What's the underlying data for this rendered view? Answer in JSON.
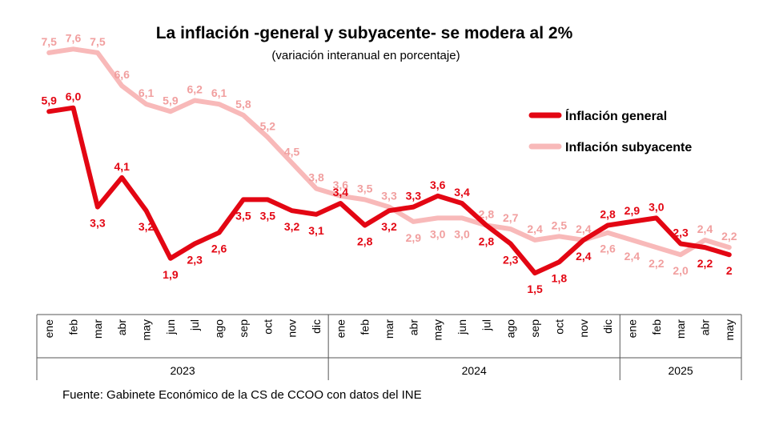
{
  "chart_data": {
    "type": "line",
    "title": "La inflación -general y subyacente- se modera al 2%",
    "subtitle": "(variación interanual en porcentaje)",
    "source": "Fuente: Gabinete Económico de la CS de CCOO con datos del INE",
    "categories": [
      "ene",
      "feb",
      "mar",
      "abr",
      "may",
      "jun",
      "jul",
      "ago",
      "sep",
      "oct",
      "nov",
      "dic",
      "ene",
      "feb",
      "mar",
      "abr",
      "may",
      "jun",
      "jul",
      "ago",
      "sep",
      "oct",
      "nov",
      "dic",
      "ene",
      "feb",
      "mar",
      "abr",
      "may"
    ],
    "years": [
      {
        "label": "2023",
        "start": 0,
        "end": 11
      },
      {
        "label": "2024",
        "start": 12,
        "end": 23
      },
      {
        "label": "2025",
        "start": 24,
        "end": 28
      }
    ],
    "ylim": [
      0,
      8.5
    ],
    "series": [
      {
        "name": "Inflación subyacente",
        "color": "#f8b9b9",
        "label_color": "#f19f9f",
        "values": [
          7.5,
          7.6,
          7.5,
          6.6,
          6.1,
          5.9,
          6.2,
          6.1,
          5.8,
          5.2,
          4.5,
          3.8,
          3.6,
          3.5,
          3.3,
          2.9,
          3.0,
          3.0,
          2.8,
          2.7,
          2.4,
          2.5,
          2.4,
          2.6,
          2.4,
          2.2,
          2.0,
          2.4,
          2.2
        ],
        "labels": [
          "7,5",
          "7,6",
          "7,5",
          "6,6",
          "6,1",
          "5,9",
          "6,2",
          "6,1",
          "5,8",
          "5,2",
          "4,5",
          "3,8",
          "3,6",
          "3,5",
          "3,3",
          "2,9",
          "3,0",
          "3,0",
          "2,8",
          "2,7",
          "2,4",
          "2,5",
          "2,4",
          "2,6",
          "2,4",
          "2,2",
          "2,0",
          "2,4",
          "2,2"
        ],
        "label_pos": [
          "above",
          "above",
          "above",
          "above",
          "above",
          "above",
          "above",
          "above",
          "above",
          "above",
          "above",
          "above",
          "above",
          "above",
          "above",
          "below",
          "below",
          "below",
          "above",
          "above",
          "above",
          "above",
          "above",
          "below",
          "below",
          "below",
          "below",
          "above",
          "above"
        ]
      },
      {
        "name": "Inflación general",
        "color": "#e30613",
        "label_color": "#e30613",
        "values": [
          5.9,
          6.0,
          3.3,
          4.1,
          3.2,
          1.9,
          2.3,
          2.6,
          3.5,
          3.5,
          3.2,
          3.1,
          3.4,
          2.8,
          3.2,
          3.3,
          3.6,
          3.4,
          2.8,
          2.3,
          1.5,
          1.8,
          2.4,
          2.8,
          2.9,
          3.0,
          2.3,
          2.2,
          2.0
        ],
        "labels": [
          "5,9",
          "6,0",
          "3,3",
          "4,1",
          "3,2",
          "1,9",
          "2,3",
          "2,6",
          "3,5",
          "3,5",
          "3,2",
          "3,1",
          "3,4",
          "2,8",
          "3,2",
          "3,3",
          "3,6",
          "3,4",
          "2,8",
          "2,3",
          "1,5",
          "1,8",
          "2,4",
          "2,8",
          "2,9",
          "3,0",
          "2,3",
          "2,2",
          "2"
        ],
        "label_pos": [
          "above",
          "above",
          "below",
          "above",
          "below",
          "below",
          "below",
          "below",
          "below",
          "below",
          "below",
          "below",
          "above",
          "below",
          "below",
          "above",
          "above",
          "above",
          "below",
          "below",
          "below",
          "below",
          "below",
          "above",
          "above",
          "above",
          "above",
          "below",
          "below"
        ]
      }
    ],
    "legend": [
      {
        "name": "Ínflación general",
        "color": "#e30613"
      },
      {
        "name": "Inflación subyacente",
        "color": "#f8b9b9"
      }
    ]
  }
}
